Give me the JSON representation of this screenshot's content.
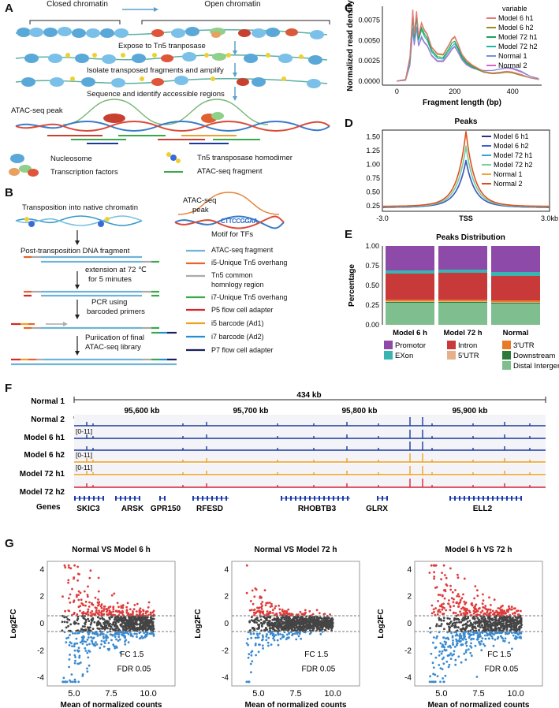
{
  "panels": {
    "a": "A",
    "b": "B",
    "c": "C",
    "d": "D",
    "e": "E",
    "f": "F",
    "g": "G"
  },
  "a": {
    "closed": "Closed chromatin",
    "open": "Open chromatin",
    "step1": "Expose to Tn5 tranposase",
    "step2": "Isolate transposed fragments and amplify",
    "step3": "Sequence and identify accessible regions",
    "peak": "ATAC-seq peak",
    "leg_nucleosome": "Nucleosome",
    "leg_tf": "Transcription factors",
    "leg_tn5": "Tn5 transposase homodimer",
    "leg_frag": "ATAC-seq fragment"
  },
  "b": {
    "s1": "Transposition into native chromatin",
    "s2": "Post-transposition DNA fragment",
    "s3a": "extension at 72",
    "s3deg": "℃",
    "s3b": "for  5 minutes",
    "s4a": "PCR using",
    "s4b": "barcoded primers",
    "s5a": "Puriication of final",
    "s5b": "ATAC-seq library",
    "peak_a": "ATAC-seq",
    "peak_b": "peak",
    "motif_seq": "CTTCCGGAA",
    "motif": "Motif for TFs",
    "legend": [
      {
        "label": "ATAC-seq fragment",
        "color": "#6fb3d6"
      },
      {
        "label": "i5-Unique Tn5 overhang",
        "color": "#e8632a"
      },
      {
        "label": "Tn5 common",
        "color": "#aaaaaa"
      },
      {
        "label": "homnlogy region",
        "color": ""
      },
      {
        "label": "i7-Unique Tn5 overhang",
        "color": "#3aaa4a"
      },
      {
        "label": "P5 flow cell adapter",
        "color": "#d8252a"
      },
      {
        "label": "i5 barcode (Ad1)",
        "color": "#f0a020"
      },
      {
        "label": "i7 barcode (Ad2)",
        "color": "#1f8fd8"
      },
      {
        "label": "P7 flow cell adapter",
        "color": "#1a1f5a"
      }
    ]
  },
  "chart_data": [
    {
      "id": "C",
      "type": "line",
      "title": "",
      "xlabel": "Fragment length (bp)",
      "ylabel": "Normalized read density",
      "xlim": [
        -50,
        500
      ],
      "ylim": [
        -0.0005,
        0.0092
      ],
      "xticks": [
        "0",
        "200",
        "400"
      ],
      "yticks": [
        "0.0000",
        "0.0025",
        "0.0050",
        "0.0075"
      ],
      "legend_title": "variable",
      "x": [
        0,
        30,
        45,
        55,
        60,
        68,
        75,
        85,
        95,
        105,
        120,
        140,
        160,
        180,
        190,
        200,
        210,
        225,
        240,
        260,
        280,
        300,
        330,
        360,
        380,
        400,
        430,
        460,
        490
      ],
      "series": [
        {
          "name": "Model 6 h1",
          "color": "#e8797a",
          "values": [
            0,
            0.0002,
            0.003,
            0.0088,
            0.0058,
            0.0086,
            0.0056,
            0.0072,
            0.0063,
            0.0058,
            0.0042,
            0.0034,
            0.0033,
            0.0045,
            0.0052,
            0.0055,
            0.0047,
            0.0033,
            0.0026,
            0.002,
            0.0016,
            0.0012,
            0.001,
            0.0011,
            0.0012,
            0.0011,
            0.0008,
            0.0004,
            0.0002
          ]
        },
        {
          "name": "Model  6 h2",
          "color": "#9a8a1a",
          "values": [
            0,
            0.0002,
            0.0029,
            0.0087,
            0.0057,
            0.0085,
            0.0055,
            0.0071,
            0.0062,
            0.0057,
            0.0041,
            0.0033,
            0.0032,
            0.0044,
            0.0051,
            0.0054,
            0.0046,
            0.0032,
            0.0025,
            0.0019,
            0.0015,
            0.0011,
            0.0009,
            0.001,
            0.0011,
            0.001,
            0.0007,
            0.0004,
            0.0002
          ]
        },
        {
          "name": "Model 72 h1",
          "color": "#1fa25a",
          "values": [
            0,
            0.0002,
            0.0027,
            0.0082,
            0.0054,
            0.008,
            0.0052,
            0.0066,
            0.0058,
            0.0053,
            0.0038,
            0.003,
            0.0029,
            0.004,
            0.0047,
            0.0049,
            0.0042,
            0.003,
            0.0023,
            0.0018,
            0.0014,
            0.0011,
            0.0009,
            0.001,
            0.0011,
            0.001,
            0.0007,
            0.0004,
            0.0002
          ]
        },
        {
          "name": "Model 72 h2",
          "color": "#20b6a8",
          "values": [
            0,
            0.0002,
            0.0026,
            0.0079,
            0.0052,
            0.0077,
            0.005,
            0.0063,
            0.0055,
            0.005,
            0.0036,
            0.0028,
            0.0027,
            0.0037,
            0.0043,
            0.0046,
            0.004,
            0.0028,
            0.0022,
            0.0017,
            0.0014,
            0.0011,
            0.001,
            0.0011,
            0.0012,
            0.0011,
            0.0008,
            0.0004,
            0.0002
          ]
        },
        {
          "name": "Normal 1",
          "color": "#7a8fd6",
          "values": [
            0,
            0.0001,
            0.002,
            0.0066,
            0.0045,
            0.0067,
            0.0044,
            0.0055,
            0.0048,
            0.0044,
            0.0032,
            0.0025,
            0.0025,
            0.0034,
            0.004,
            0.0043,
            0.0037,
            0.0027,
            0.0021,
            0.0017,
            0.0015,
            0.0013,
            0.0013,
            0.0015,
            0.0017,
            0.0016,
            0.0012,
            0.0006,
            0.0003
          ]
        },
        {
          "name": "Normal 2",
          "color": "#d466c8",
          "values": [
            0,
            0.0001,
            0.0019,
            0.0064,
            0.0044,
            0.0065,
            0.0043,
            0.0053,
            0.0047,
            0.0043,
            0.0031,
            0.0024,
            0.0024,
            0.0033,
            0.0039,
            0.0042,
            0.0036,
            0.0026,
            0.002,
            0.0016,
            0.0014,
            0.0013,
            0.0013,
            0.0015,
            0.0016,
            0.0015,
            0.0011,
            0.0006,
            0.0003
          ]
        }
      ]
    },
    {
      "id": "D",
      "type": "line",
      "title": "Peaks",
      "xlabel": "",
      "ylabel": "",
      "xlim": [
        -3,
        3
      ],
      "ylim": [
        0.15,
        1.62
      ],
      "xticks": [
        "-3.0",
        "TSS",
        "3.0kb"
      ],
      "yticks": [
        "0.25",
        "0.50",
        "0.75",
        "1.00",
        "1.25",
        "1.50"
      ],
      "series": [
        {
          "name": "Model 6 h1",
          "color": "#2a2f8a",
          "peak": 1.02,
          "base": 0.22
        },
        {
          "name": "Model 6 h2",
          "color": "#3d5fc8",
          "peak": 1.04,
          "base": 0.22
        },
        {
          "name": "Model 72 h1",
          "color": "#3aa0d8",
          "peak": 1.28,
          "base": 0.23
        },
        {
          "name": "Model 72 h2",
          "color": "#7ad09a",
          "peak": 1.3,
          "base": 0.23
        },
        {
          "name": "Normal 1",
          "color": "#f0a030",
          "peak": 1.54,
          "base": 0.24
        },
        {
          "name": "Normal 2",
          "color": "#e04a1a",
          "peak": 1.56,
          "base": 0.24
        }
      ]
    },
    {
      "id": "E",
      "type": "bar",
      "title": "Peaks Distribution",
      "xlabel": "",
      "ylabel": "Percentage",
      "ylim": [
        0,
        1
      ],
      "yticks": [
        "0.00",
        "0.25",
        "0.50",
        "0.75",
        "1.00"
      ],
      "categories": [
        "Model 6 h",
        "Model 72 h",
        "Normal"
      ],
      "series": [
        {
          "name": "Distal Intergenic",
          "color": "#7fbf8f",
          "values": [
            0.28,
            0.28,
            0.27
          ]
        },
        {
          "name": "Downstream",
          "color": "#2c7a3a",
          "values": [
            0.01,
            0.01,
            0.01
          ]
        },
        {
          "name": "5'UTR",
          "color": "#e8b08a",
          "values": [
            0.01,
            0.01,
            0.01
          ]
        },
        {
          "name": "3'UTR",
          "color": "#e87a2a",
          "values": [
            0.02,
            0.02,
            0.02
          ]
        },
        {
          "name": "Intron",
          "color": "#c83a3a",
          "values": [
            0.33,
            0.34,
            0.31
          ]
        },
        {
          "name": "EXon",
          "color": "#3ab4b0",
          "values": [
            0.04,
            0.04,
            0.05
          ]
        },
        {
          "name": "Promotor",
          "color": "#8e4aa8",
          "values": [
            0.31,
            0.3,
            0.33
          ]
        }
      ],
      "legend_order": [
        "Promotor",
        "Intron",
        "3'UTR",
        "EXon",
        "5'UTR",
        "Downstream",
        "Distal Intergenic"
      ]
    },
    {
      "id": "F",
      "type": "table",
      "title": "434 kb",
      "coords": [
        "95,600 kb",
        "95,700 kb",
        "95,800 kb",
        "95,900 kb"
      ],
      "tracks": [
        {
          "name": "Normal 1",
          "color": "#1a3a9a",
          "scale": ""
        },
        {
          "name": "Normal 2",
          "color": "#1a3a9a",
          "scale": "[0-11]"
        },
        {
          "name": "Model 6 h1",
          "color": "#1a3a9a",
          "scale": ""
        },
        {
          "name": "Model 6 h2",
          "color": "#f0a020",
          "scale": "[0-11]"
        },
        {
          "name": "Model 72 h1",
          "color": "#f0a020",
          "scale": "[0-11]"
        },
        {
          "name": "Model 72 h2",
          "color": "#d8253a",
          "scale": ""
        }
      ],
      "genes_label": "Genes",
      "genes": [
        "SKIC3",
        "ARSK",
        "GPR150",
        "RFESD",
        "RHOBTB3",
        "GLRX",
        "ELL2"
      ]
    },
    {
      "id": "G",
      "type": "scatter",
      "xlabel": "Mean of normalized counts",
      "ylabel": "Log2FC",
      "plots": [
        {
          "title": "Normal VS Model 6 h",
          "xticks": [
            "5.0",
            "7.5",
            "10.0"
          ],
          "yticks": [
            "4",
            "2",
            "0",
            "-2",
            "-4"
          ],
          "fc": "FC 1.5",
          "fdr": "FDR 0.05",
          "spread": 2.6
        },
        {
          "title": "Normal VS Model 72 h",
          "xticks": [
            "5.0",
            "7.5",
            "10.0"
          ],
          "yticks": [
            "4",
            "2",
            "0",
            "-2",
            "-4"
          ],
          "fc": "FC 1.5",
          "fdr": "FDR 0.05",
          "spread": 1.3
        },
        {
          "title": "Model 6 h VS 72 h",
          "xticks": [
            "5.0",
            "7.5",
            "10.0"
          ],
          "yticks": [
            "4",
            "2",
            "0",
            "-2",
            "-4"
          ],
          "fc": "FC 1.5",
          "fdr": "FDR 0.05",
          "spread": 2.8
        }
      ]
    }
  ]
}
